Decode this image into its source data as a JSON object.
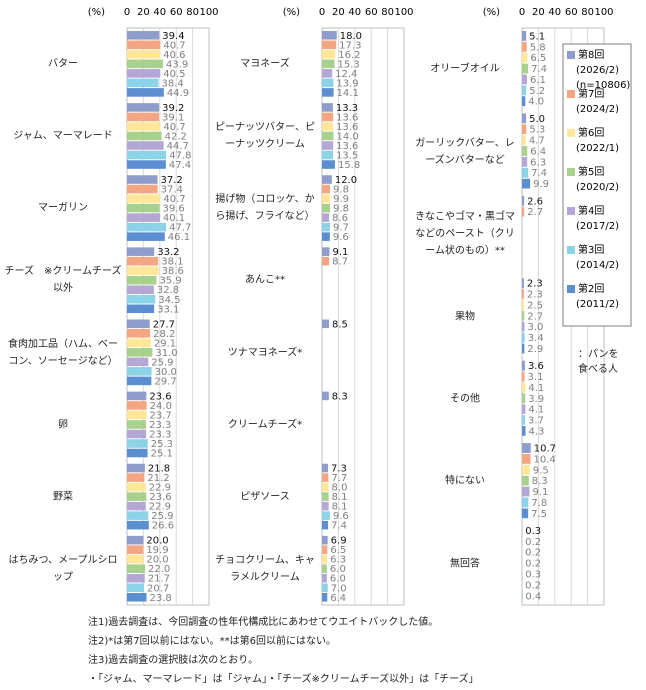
{
  "chart_data": [
    {
      "type": "bar",
      "x_label": "(%)",
      "xlim": [
        0,
        100
      ],
      "xticks": [
        0,
        20,
        40,
        60,
        80,
        100
      ],
      "categories": [
        "バター",
        "ジャム、マーマレード",
        "マーガリン",
        "チーズ　※クリームチーズ以外",
        "食肉加工品（ハム、ベーコン、ソーセージなど）",
        "卵",
        "野菜",
        "はちみつ、メープルシロップ"
      ],
      "series": [
        {
          "name": "第8回",
          "color": "#8e9dcc",
          "values": [
            39.4,
            39.2,
            37.2,
            33.2,
            27.7,
            23.6,
            21.8,
            20.0
          ],
          "value_labels": [
            "39.4",
            "39.2",
            "37.2",
            "33.2",
            "27.7",
            "23.6",
            "21.8",
            "20.0"
          ]
        },
        {
          "name": "第7回",
          "color": "#f4a582",
          "values": [
            40.7,
            39.1,
            37.4,
            38.1,
            28.2,
            24.0,
            21.2,
            19.9
          ],
          "value_labels": [
            "40.7",
            "39.1",
            "37.4",
            "38.1",
            "28.2",
            "24.0",
            "21.2",
            "19.9"
          ]
        },
        {
          "name": "第6回",
          "color": "#ffe699",
          "values": [
            40.6,
            40.7,
            40.7,
            38.6,
            29.1,
            23.7,
            22.9,
            20.0
          ],
          "value_labels": [
            "40.6",
            "40.7",
            "40.7",
            "38.6",
            "29.1",
            "23.7",
            "22.9",
            "20.0"
          ]
        },
        {
          "name": "第5回",
          "color": "#a9d18e",
          "values": [
            43.9,
            42.2,
            39.6,
            35.9,
            31.0,
            23.3,
            23.6,
            22.0
          ],
          "value_labels": [
            "43.9",
            "42.2",
            "39.6",
            "35.9",
            "31.0",
            "23.3",
            "23.6",
            "22.0"
          ]
        },
        {
          "name": "第4回",
          "color": "#b4a7d6",
          "values": [
            40.5,
            44.7,
            40.1,
            32.8,
            25.9,
            23.3,
            22.9,
            21.7
          ],
          "value_labels": [
            "40.5",
            "44.7",
            "40.1",
            "32.8",
            "25.9",
            "23.3",
            "22.9",
            "21.7"
          ]
        },
        {
          "name": "第3回",
          "color": "#8dd3e8",
          "values": [
            38.4,
            47.8,
            47.7,
            34.5,
            30.0,
            25.3,
            25.9,
            20.7
          ],
          "value_labels": [
            "38.4",
            "47.8",
            "47.7",
            "34.5",
            "30.0",
            "25.3",
            "25.9",
            "20.7"
          ]
        },
        {
          "name": "第2回",
          "color": "#5b8fd1",
          "values": [
            44.9,
            47.4,
            46.1,
            33.1,
            29.7,
            25.1,
            26.6,
            23.8
          ],
          "value_labels": [
            "44.9",
            "47.4",
            "46.1",
            "33.1",
            "29.7",
            "25.1",
            "26.6",
            "23.8"
          ]
        }
      ]
    },
    {
      "type": "bar",
      "x_label": "(%)",
      "xlim": [
        0,
        100
      ],
      "xticks": [
        0,
        20,
        40,
        60,
        80,
        100
      ],
      "categories": [
        "マヨネーズ",
        "ピーナッツバター、ピーナッツクリーム",
        "揚げ物（コロッケ、から揚げ、フライなど）",
        "あんこ**",
        "ツナマヨネーズ*",
        "クリームチーズ*",
        "ピザソース",
        "チョコクリーム、キャラメルクリーム"
      ],
      "series": [
        {
          "name": "第8回",
          "color": "#8e9dcc",
          "values": [
            18.0,
            13.3,
            12.0,
            9.1,
            8.5,
            8.3,
            7.3,
            6.9
          ],
          "value_labels": [
            "18.0",
            "13.3",
            "12.0",
            "9.1",
            "8.5",
            "8.3",
            "7.3",
            "6.9"
          ]
        },
        {
          "name": "第7回",
          "color": "#f4a582",
          "values": [
            17.3,
            13.6,
            9.8,
            8.7,
            null,
            null,
            7.7,
            6.5
          ],
          "value_labels": [
            "17.3",
            "13.6",
            "9.8",
            "8.7",
            null,
            null,
            "7.7",
            "6.5"
          ]
        },
        {
          "name": "第6回",
          "color": "#ffe699",
          "values": [
            16.2,
            13.6,
            9.9,
            null,
            null,
            null,
            8.0,
            6.3
          ],
          "value_labels": [
            "16.2",
            "13.6",
            "9.9",
            null,
            null,
            null,
            "8.0",
            "6.3"
          ]
        },
        {
          "name": "第5回",
          "color": "#a9d18e",
          "values": [
            15.3,
            14.0,
            9.8,
            null,
            null,
            null,
            8.1,
            6.0
          ],
          "value_labels": [
            "15.3",
            "14.0",
            "9.8",
            null,
            null,
            null,
            "8.1",
            "6.0"
          ]
        },
        {
          "name": "第4回",
          "color": "#b4a7d6",
          "values": [
            12.4,
            13.6,
            8.6,
            null,
            null,
            null,
            8.1,
            6.0
          ],
          "value_labels": [
            "12.4",
            "13.6",
            "8.6",
            null,
            null,
            null,
            "8.1",
            "6.0"
          ]
        },
        {
          "name": "第3回",
          "color": "#8dd3e8",
          "values": [
            13.9,
            13.5,
            9.7,
            null,
            null,
            null,
            9.6,
            7.0
          ],
          "value_labels": [
            "13.9",
            "13.5",
            "9.7",
            null,
            null,
            null,
            "9.6",
            "7.0"
          ]
        },
        {
          "name": "第2回",
          "color": "#5b8fd1",
          "values": [
            14.1,
            15.8,
            9.6,
            null,
            null,
            null,
            7.4,
            6.4
          ],
          "value_labels": [
            "14.1",
            "15.8",
            "9.6",
            null,
            null,
            null,
            "7.4",
            "6.4"
          ]
        }
      ]
    },
    {
      "type": "bar",
      "x_label": "(%)",
      "xlim": [
        0,
        100
      ],
      "xticks": [
        0,
        20,
        40,
        60,
        80,
        100
      ],
      "categories": [
        "オリーブオイル",
        "ガーリックバター、レーズンバターなど",
        "きなこやゴマ・黒ゴマなどのペースト（クリーム状のもの）**",
        "果物",
        "その他",
        "特にない",
        "無回答"
      ],
      "legend_note": "：パンを食べる人",
      "series": [
        {
          "name": "第8回",
          "period": "(2026/2)",
          "n": "(n=10806)",
          "color": "#8e9dcc",
          "values": [
            5.1,
            5.0,
            2.6,
            2.3,
            3.6,
            10.7,
            0.3
          ],
          "value_labels": [
            "5.1",
            "5.0",
            "2.6",
            "2.3",
            "3.6",
            "10.7",
            "0.3"
          ]
        },
        {
          "name": "第7回",
          "period": "(2024/2)",
          "color": "#f4a582",
          "values": [
            5.8,
            5.3,
            2.7,
            2.3,
            3.1,
            10.4,
            0.2
          ],
          "value_labels": [
            "5.8",
            "5.3",
            "2.7",
            "2.3",
            "3.1",
            "10.4",
            "0.2"
          ]
        },
        {
          "name": "第6回",
          "period": "(2022/1)",
          "color": "#ffe699",
          "values": [
            6.5,
            4.7,
            null,
            2.5,
            4.1,
            9.5,
            0.2
          ],
          "value_labels": [
            "6.5",
            "4.7",
            null,
            "2.5",
            "4.1",
            "9.5",
            "0.2"
          ]
        },
        {
          "name": "第5回",
          "period": "(2020/2)",
          "color": "#a9d18e",
          "values": [
            7.4,
            6.4,
            null,
            2.7,
            3.9,
            8.3,
            0.2
          ],
          "value_labels": [
            "7.4",
            "6.4",
            null,
            "2.7",
            "3.9",
            "8.3",
            "0.2"
          ]
        },
        {
          "name": "第4回",
          "period": "(2017/2)",
          "color": "#b4a7d6",
          "values": [
            6.1,
            6.3,
            null,
            3.0,
            4.1,
            9.1,
            0.3
          ],
          "value_labels": [
            "6.1",
            "6.3",
            null,
            "3.0",
            "4.1",
            "9.1",
            "0.3"
          ]
        },
        {
          "name": "第3回",
          "period": "(2014/2)",
          "color": "#8dd3e8",
          "values": [
            5.2,
            7.4,
            null,
            3.4,
            3.7,
            7.8,
            0.2
          ],
          "value_labels": [
            "5.2",
            "7.4",
            null,
            "3.4",
            "3.7",
            "7.8",
            "0.2"
          ]
        },
        {
          "name": "第2回",
          "period": "(2011/2)",
          "color": "#5b8fd1",
          "values": [
            4.0,
            9.9,
            null,
            2.9,
            4.3,
            7.5,
            0.4
          ],
          "value_labels": [
            "4.0",
            "9.9",
            null,
            "2.9",
            "4.3",
            "7.5",
            "0.4"
          ]
        }
      ]
    }
  ],
  "notes": [
    "注1)過去調査は、今回調査の性年代構成比にあわせてウエイトバックした値。",
    "注2)*は第7回以前にはない。**は第6回以前にはない。",
    "注3)過去調査の選択肢は次のとおり。",
    "・「ジャム、マーマレード」は「ジャム」・「チーズ※クリームチーズ以外」は「チーズ」"
  ]
}
